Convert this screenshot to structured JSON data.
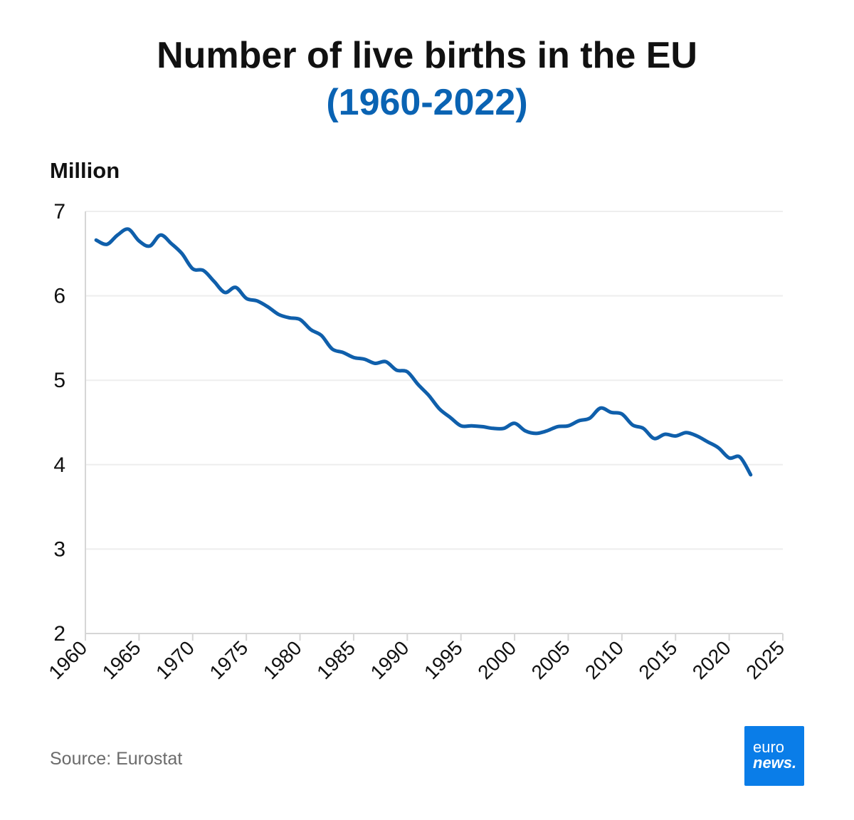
{
  "colors": {
    "accent": "#0a63b3",
    "line": "#0f5fab",
    "grid": "#eeeeee",
    "axis": "#d6d6d6",
    "logo_bg": "#0a7de8"
  },
  "header": {
    "title": "Number of live births in the EU",
    "subtitle": "(1960-2022)"
  },
  "footer": {
    "source": "Source: Eurostat",
    "logo_line1": "euro",
    "logo_line2": "news."
  },
  "logo_icon": "euronews-logo",
  "chart_data": {
    "type": "line",
    "title": "Number of live births in the EU",
    "subtitle": "(1960-2022)",
    "ylabel": "Million",
    "xlabel": "",
    "xlim": [
      1960,
      2025
    ],
    "ylim": [
      2,
      7
    ],
    "xticks": [
      1960,
      1965,
      1970,
      1975,
      1980,
      1985,
      1990,
      1995,
      2000,
      2005,
      2010,
      2015,
      2020,
      2025
    ],
    "yticks": [
      2,
      3,
      4,
      5,
      6,
      7
    ],
    "grid": "horizontal",
    "series": [
      {
        "x": [
          1961,
          1962,
          1963,
          1964,
          1965,
          1966,
          1967,
          1968,
          1969,
          1970,
          1971,
          1972,
          1973,
          1974,
          1975,
          1976,
          1977,
          1978,
          1979,
          1980,
          1981,
          1982,
          1983,
          1984,
          1985,
          1986,
          1987,
          1988,
          1989,
          1990,
          1991,
          1992,
          1993,
          1994,
          1995,
          1996,
          1997,
          1998,
          1999,
          2000,
          2001,
          2002,
          2003,
          2004,
          2005,
          2006,
          2007,
          2008,
          2009,
          2010,
          2011,
          2012,
          2013,
          2014,
          2015,
          2016,
          2017,
          2018,
          2019,
          2020,
          2021,
          2022
        ],
        "values": [
          6.66,
          6.61,
          6.72,
          6.79,
          6.65,
          6.59,
          6.72,
          6.62,
          6.5,
          6.32,
          6.3,
          6.17,
          6.04,
          6.1,
          5.97,
          5.94,
          5.87,
          5.78,
          5.74,
          5.72,
          5.6,
          5.53,
          5.37,
          5.33,
          5.27,
          5.25,
          5.2,
          5.22,
          5.12,
          5.1,
          4.95,
          4.82,
          4.66,
          4.56,
          4.46,
          4.46,
          4.45,
          4.43,
          4.43,
          4.49,
          4.4,
          4.37,
          4.4,
          4.45,
          4.46,
          4.52,
          4.55,
          4.67,
          4.62,
          4.6,
          4.47,
          4.43,
          4.31,
          4.36,
          4.34,
          4.38,
          4.34,
          4.27,
          4.2,
          4.08,
          4.09,
          3.88
        ]
      }
    ]
  }
}
